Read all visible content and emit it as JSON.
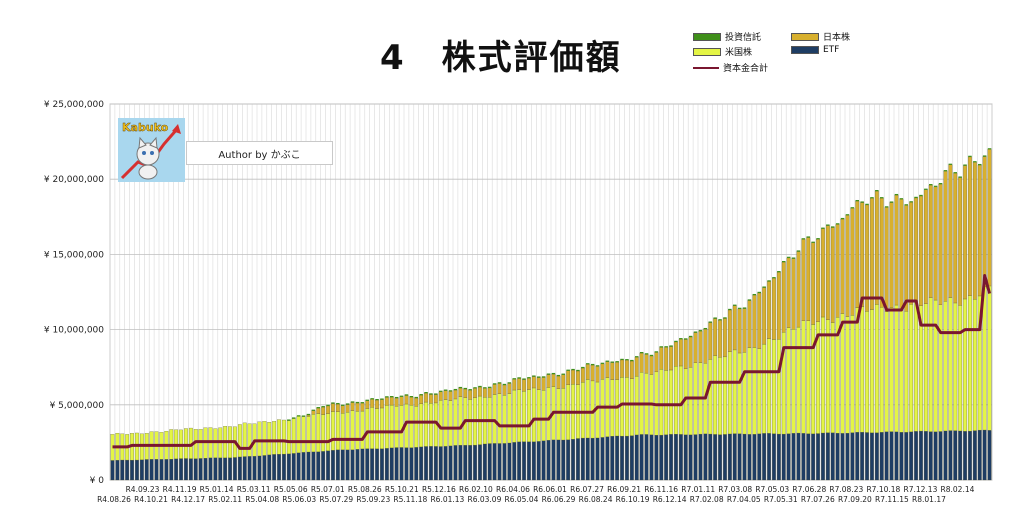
{
  "chart_data": {
    "type": "bar",
    "title": "4　株式評価額",
    "stacked": true,
    "ylim": [
      0,
      25000000
    ],
    "yticks": [
      "¥ 0",
      "¥ 5,000,000",
      "¥ 10,000,000",
      "¥ 15,000,000",
      "¥ 20,000,000",
      "¥ 25,000,000"
    ],
    "ytick_values": [
      0,
      5000000,
      10000000,
      15000000,
      20000000,
      25000000
    ],
    "grid": true,
    "legend_position": "top-right",
    "categories_upper": [
      "R4.09.23",
      "R4.11.19",
      "R5.01.14",
      "R5.03.11",
      "R5.05.06",
      "R5.07.01",
      "R5.08.26",
      "R5.10.21",
      "R5.12.16",
      "R6.02.10",
      "R6.04.06",
      "R6.06.01",
      "R6.07.27",
      "R6.09.21",
      "R6.11.16",
      "R7.01.11",
      "R7.03.08",
      "R7.05.03",
      "R7.06.28",
      "R7.08.23",
      "R7.10.18",
      "R7.12.13",
      "R8.02.14"
    ],
    "categories_lower": [
      "R4.08.26",
      "R4.10.21",
      "R4.12.17",
      "R5.02.11",
      "R5.04.08",
      "R5.06.03",
      "R5.07.29",
      "R5.09.23",
      "R5.11.18",
      "R6.01.13",
      "R6.03.09",
      "R6.05.04",
      "R6.06.29",
      "R6.08.24",
      "R6.10.19",
      "R6.12.14",
      "R7.02.08",
      "R7.04.05",
      "R7.05.31",
      "R7.07.26",
      "R7.09.20",
      "R7.11.15",
      "R8.01.17"
    ],
    "series": [
      {
        "name": "投資信託",
        "color": "#3f8f1a",
        "values_summary": "near zero"
      },
      {
        "name": "日本株",
        "color": "#d8b02e",
        "anchors": [
          [
            0,
            0
          ],
          [
            0.22,
            0
          ],
          [
            0.24,
            500000
          ],
          [
            0.42,
            600000
          ],
          [
            0.52,
            900000
          ],
          [
            0.62,
            1300000
          ],
          [
            0.72,
            3000000
          ],
          [
            0.78,
            5000000
          ],
          [
            0.86,
            7300000
          ],
          [
            0.92,
            7000000
          ],
          [
            0.96,
            8800000
          ],
          [
            1.0,
            9000000
          ]
        ]
      },
      {
        "name": "米国株",
        "color": "#e4f545",
        "anchors": [
          [
            0,
            1700000
          ],
          [
            0.14,
            2100000
          ],
          [
            0.28,
            2600000
          ],
          [
            0.4,
            3100000
          ],
          [
            0.52,
            3600000
          ],
          [
            0.62,
            4100000
          ],
          [
            0.72,
            5500000
          ],
          [
            0.8,
            7500000
          ],
          [
            0.88,
            8300000
          ],
          [
            0.96,
            8600000
          ],
          [
            1.0,
            9400000
          ]
        ]
      },
      {
        "name": "ETF",
        "color": "#1e3d64",
        "anchors": [
          [
            0,
            1300000
          ],
          [
            0.14,
            1500000
          ],
          [
            0.26,
            2000000
          ],
          [
            0.4,
            2300000
          ],
          [
            0.52,
            2700000
          ],
          [
            0.6,
            3000000
          ],
          [
            0.8,
            3100000
          ],
          [
            1.0,
            3300000
          ]
        ]
      }
    ],
    "line_series": {
      "name": "資本金合計",
      "color": "#7a1630",
      "steps": [
        [
          0,
          2200000
        ],
        [
          0.02,
          2300000
        ],
        [
          0.09,
          2550000
        ],
        [
          0.14,
          2100000
        ],
        [
          0.16,
          2600000
        ],
        [
          0.2,
          2550000
        ],
        [
          0.25,
          2700000
        ],
        [
          0.29,
          3200000
        ],
        [
          0.33,
          3850000
        ],
        [
          0.37,
          3450000
        ],
        [
          0.4,
          3950000
        ],
        [
          0.44,
          3600000
        ],
        [
          0.48,
          4050000
        ],
        [
          0.5,
          4500000
        ],
        [
          0.55,
          4850000
        ],
        [
          0.58,
          5050000
        ],
        [
          0.62,
          5000000
        ],
        [
          0.65,
          5450000
        ],
        [
          0.68,
          6500000
        ],
        [
          0.72,
          7200000
        ],
        [
          0.76,
          8800000
        ],
        [
          0.8,
          9650000
        ],
        [
          0.83,
          10500000
        ],
        [
          0.85,
          12100000
        ],
        [
          0.88,
          11300000
        ],
        [
          0.9,
          11900000
        ],
        [
          0.92,
          10300000
        ],
        [
          0.94,
          9800000
        ],
        [
          0.97,
          10000000
        ],
        [
          0.99,
          13600000
        ],
        [
          1.0,
          12400000
        ]
      ]
    },
    "bar_count": 180
  },
  "legend": {
    "items": [
      {
        "label": "投資信託",
        "color": "#3f8f1a"
      },
      {
        "label": "日本株",
        "color": "#d8b02e"
      },
      {
        "label": "米国株",
        "color": "#e4f545"
      },
      {
        "label": "ETF",
        "color": "#1e3d64"
      },
      {
        "label": "資本金合計",
        "color": "#7a1630"
      }
    ]
  },
  "logo": {
    "text": "Kabuko"
  },
  "author": {
    "text": "Author by かぶこ"
  }
}
